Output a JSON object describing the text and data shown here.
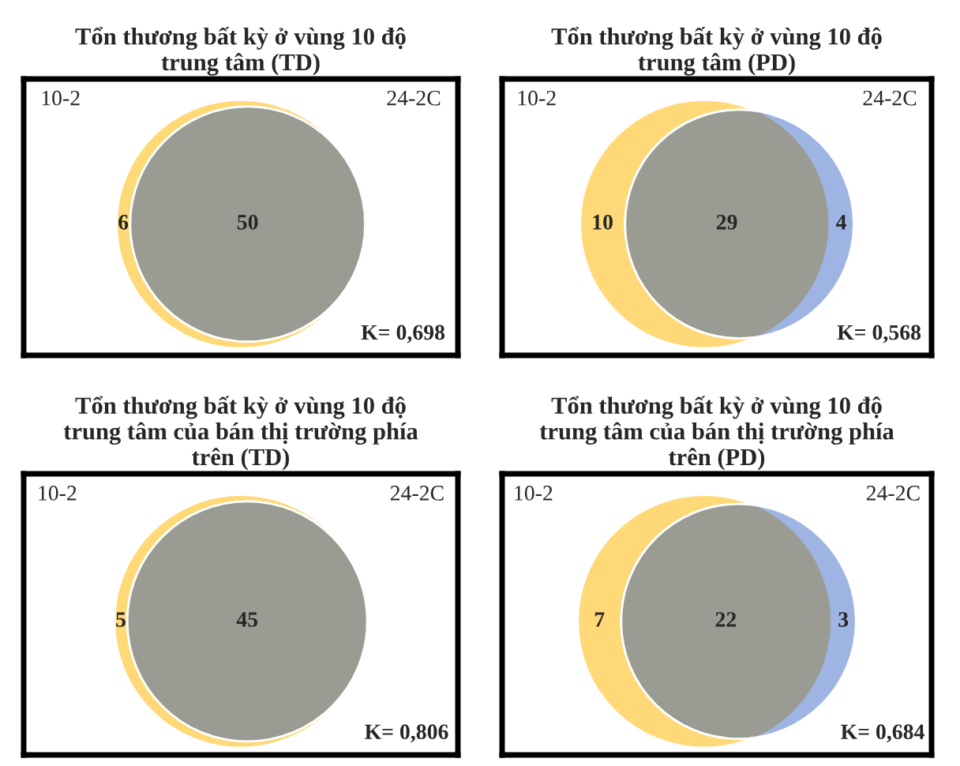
{
  "chart_data": [
    {
      "type": "other",
      "title": "Tổn thương bất kỳ ở vùng 10 độ\ntrung tâm (TD)",
      "categories": [
        "10-2",
        null,
        "24-2C"
      ],
      "values": [
        6,
        50,
        null
      ],
      "data_labels": true,
      "colors": [
        "#ffd978",
        "#9a9c93",
        "#9eb4e2"
      ],
      "annotations": [
        "K= 0,698"
      ]
    },
    {
      "type": "other",
      "title": "Tổn thương bất kỳ ở vùng 10 độ\ntrung tâm (PD)",
      "categories": [
        "10-2",
        null,
        "24-2C"
      ],
      "values": [
        10,
        29,
        4
      ],
      "data_labels": true,
      "colors": [
        "#ffd978",
        "#9a9c93",
        "#9eb4e2"
      ],
      "annotations": [
        "K= 0,568"
      ]
    },
    {
      "type": "other",
      "title": "Tổn thương bất kỳ ở vùng 10 độ\ntrung tâm của bán thị trường phía\ntrên (TD)",
      "categories": [
        "10-2",
        null,
        "24-2C"
      ],
      "values": [
        5,
        45,
        null
      ],
      "data_labels": true,
      "colors": [
        "#ffd978",
        "#9a9c93",
        "#9eb4e2"
      ],
      "annotations": [
        "K= 0,806"
      ]
    },
    {
      "type": "other",
      "title": "Tổn thương bất kỳ ở vùng 10 độ\ntrung tâm của bán thị trường phía\ntrên (PD)",
      "categories": [
        "10-2",
        null,
        "24-2C"
      ],
      "values": [
        7,
        22,
        3
      ],
      "data_labels": true,
      "colors": [
        "#ffd978",
        "#9a9c93",
        "#9eb4e2"
      ],
      "annotations": [
        "K= 0,684"
      ]
    }
  ]
}
